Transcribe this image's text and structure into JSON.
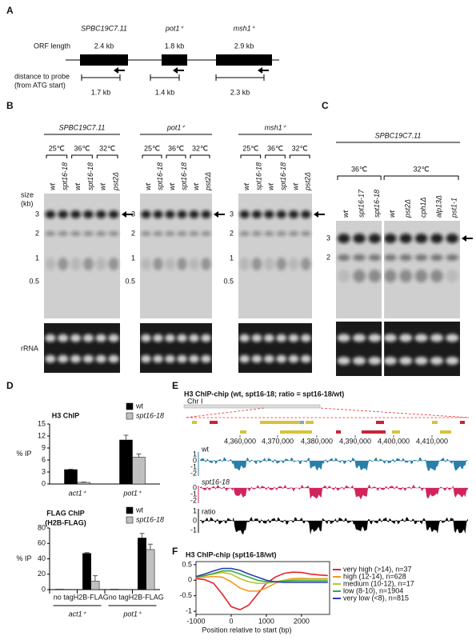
{
  "panels": {
    "a": {
      "label": "A",
      "genes": [
        "SPBC19C7.11",
        "pot1⁺",
        "msh1⁺"
      ],
      "orf_label": "ORF length",
      "orf_lengths": [
        "2.4 kb",
        "1.8 kb",
        "2.9 kb"
      ],
      "distance_label": [
        "distance to probe",
        "(from ATG start)"
      ],
      "distances": [
        "1.7 kb",
        "1.4 kb",
        "2.3 kb"
      ]
    },
    "b": {
      "label": "B",
      "genes": [
        "SPBC19C7.11",
        "pot1⁺",
        "msh1⁺"
      ],
      "temps": [
        "25℃",
        "36℃",
        "32℃"
      ],
      "lanes": [
        "wt",
        "spt16-18",
        "wt",
        "spt16-18",
        "wt",
        "pst2Δ"
      ],
      "size_label": [
        "size",
        "(kb)"
      ],
      "sizes": [
        "3",
        "2",
        "1",
        "0.5"
      ],
      "rrna": "rRNA"
    },
    "c": {
      "label": "C",
      "gene": "SPBC19C7.11",
      "temps": [
        "36℃",
        "32℃"
      ],
      "lanes": [
        "wt",
        "spt16-17",
        "spt16-18",
        "wt",
        "pst2Δ",
        "cph1Δ",
        "alp13Δ",
        "pst1-1"
      ],
      "sizes": [
        "3",
        "2"
      ]
    },
    "d": {
      "label": "D"
    },
    "e": {
      "label": "E",
      "title": "H3 ChIP-chip (wt, spt16-18; ratio = spt16-18/wt)",
      "chromosome": "Chr I",
      "coordinates": [
        "4,360,000",
        "4,370,000",
        "4,380,000",
        "4,390,000",
        "4,400,000",
        "4,410,000"
      ],
      "tracks": [
        {
          "name": "wt",
          "ticks": [
            "1",
            "0",
            "-1",
            "-2"
          ]
        },
        {
          "name": "spt16-18",
          "ticks": [
            "0",
            "-1",
            "-2"
          ]
        },
        {
          "name": "ratio",
          "ticks": [
            "1",
            "0",
            "-1"
          ]
        }
      ]
    },
    "f": {
      "label": "F"
    }
  },
  "chart_data": [
    {
      "type": "bar",
      "title": "H3 ChIP",
      "ylabel": "% IP",
      "categories": [
        "act1⁺",
        "pot1⁺"
      ],
      "series": [
        {
          "name": "wt",
          "color": "#000000",
          "values": [
            3.6,
            11
          ],
          "errors": [
            0.1,
            1.2
          ]
        },
        {
          "name": "spt16-18",
          "color": "#c0c0c0",
          "values": [
            0.4,
            6.7
          ],
          "errors": [
            0.1,
            0.8
          ]
        }
      ],
      "ylim": [
        0,
        15
      ],
      "yticks": [
        0,
        3,
        6,
        9,
        12,
        15
      ],
      "legend": "upper right"
    },
    {
      "type": "bar",
      "title": "FLAG ChIP",
      "subtitle": "(H2B-FLAG)",
      "ylabel": "% IP",
      "categories": [
        "no tag",
        "H2B-FLAG",
        "no tag",
        "H2B-FLAG"
      ],
      "groups": [
        "act1⁺",
        "pot1⁺"
      ],
      "series": [
        {
          "name": "wt",
          "color": "#000000",
          "values": [
            0.5,
            47,
            0.5,
            67
          ],
          "errors": [
            0,
            1,
            0,
            6
          ]
        },
        {
          "name": "spt16-18",
          "color": "#c0c0c0",
          "values": [
            0.3,
            11,
            0.3,
            52
          ],
          "errors": [
            0,
            7,
            0,
            7
          ]
        }
      ],
      "ylim": [
        0,
        80
      ],
      "yticks": [
        0,
        20,
        40,
        60,
        80
      ],
      "legend": "upper right"
    },
    {
      "type": "line",
      "title": "H3 ChIP-chip (spt16-18/wt)",
      "xlabel": "Position relative to start (bp)",
      "x": [
        -1000,
        -750,
        -500,
        -250,
        0,
        250,
        500,
        750,
        1000,
        1250,
        1500,
        1750,
        2000,
        2250,
        2500,
        2750
      ],
      "series": [
        {
          "name": "very high (>14), n=37",
          "color": "#e8202a",
          "values": [
            0.05,
            0.02,
            -0.1,
            -0.45,
            -0.85,
            -0.95,
            -0.8,
            -0.45,
            -0.1,
            0.1,
            0.22,
            0.26,
            0.25,
            0.2,
            0.17,
            0.15
          ]
        },
        {
          "name": "high (12-14), n=628",
          "color": "#f39a1e",
          "values": [
            0.08,
            0.1,
            0.12,
            0.1,
            -0.05,
            -0.25,
            -0.35,
            -0.35,
            -0.25,
            -0.1,
            0,
            0.05,
            0.06,
            0.05,
            0.05,
            0.05
          ]
        },
        {
          "name": "medium (10-12), n=17",
          "color": "#b5c82a",
          "values": [
            0.1,
            0.15,
            0.2,
            0.25,
            0.2,
            0.05,
            -0.05,
            -0.1,
            -0.1,
            -0.05,
            0,
            0.02,
            0.03,
            0.03,
            0.03,
            0.03
          ]
        },
        {
          "name": "low (8-10), n=1904",
          "color": "#3aa84a",
          "values": [
            0.1,
            0.15,
            0.22,
            0.3,
            0.3,
            0.2,
            0.1,
            0,
            -0.05,
            -0.05,
            -0.03,
            -0.02,
            -0.02,
            -0.02,
            -0.02,
            -0.02
          ]
        },
        {
          "name": "very low (<8), n=815",
          "color": "#2a3fb0",
          "values": [
            0.12,
            0.2,
            0.3,
            0.38,
            0.38,
            0.32,
            0.2,
            0.1,
            0,
            -0.05,
            -0.07,
            -0.07,
            -0.07,
            -0.07,
            -0.07,
            -0.07
          ]
        }
      ],
      "xlim": [
        -1000,
        2800
      ],
      "ylim": [
        -1.1,
        0.6
      ],
      "xticks": [
        -1000,
        0,
        1000,
        2000
      ],
      "yticks": [
        0.5,
        0,
        -0.5,
        -1
      ],
      "legend": "right"
    }
  ]
}
